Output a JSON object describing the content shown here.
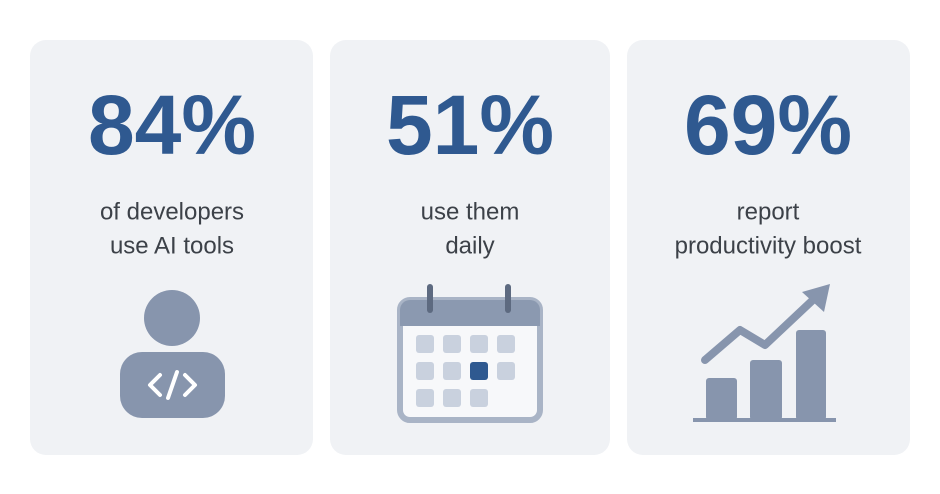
{
  "cards": [
    {
      "stat": "84%",
      "label_lines": [
        "of developers",
        "use AI tools"
      ]
    },
    {
      "stat": "51%",
      "label_lines": [
        "use them",
        "daily"
      ]
    },
    {
      "stat": "69%",
      "label_lines": [
        "report",
        "productivity boost"
      ]
    }
  ]
}
